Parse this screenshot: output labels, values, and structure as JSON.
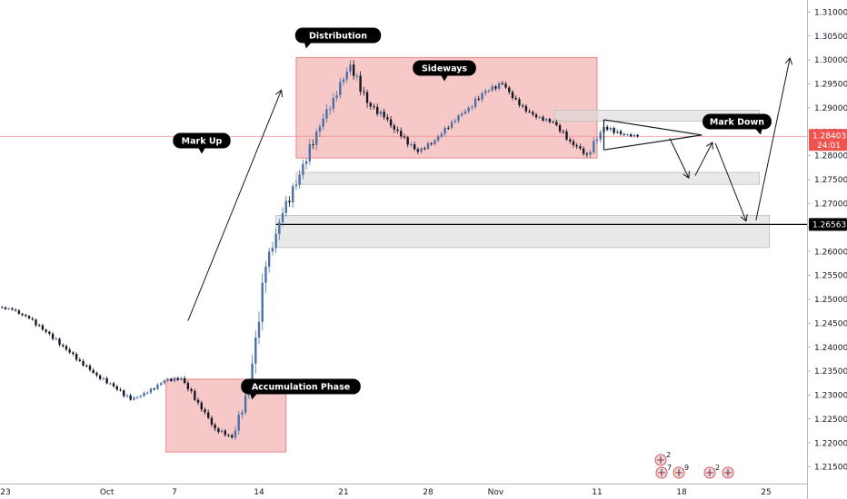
{
  "chart_data": {
    "type": "candlestick",
    "colors": {
      "up": "#4a6fa5",
      "down": "#131722",
      "zone_fill": "#ef9a9a",
      "gray_zone_fill": "#dcdcdc",
      "price_line": "#f28b8b",
      "label_fill": "#000000",
      "tag_red": "#ef5350"
    },
    "y_range": [
      1.2115,
      1.3125
    ],
    "y_ticks": [
      "1.31000",
      "1.30500",
      "1.30000",
      "1.29500",
      "1.29000",
      "1.28500",
      "1.28000",
      "1.27500",
      "1.27000",
      "1.26500",
      "1.26000",
      "1.25500",
      "1.25000",
      "1.24500",
      "1.24000",
      "1.23500",
      "1.23000",
      "1.22500",
      "1.22000",
      "1.21500"
    ],
    "x_ticks": [
      {
        "label": "23",
        "i": 0
      },
      {
        "label": "Oct",
        "i": 6
      },
      {
        "label": "7",
        "i": 10
      },
      {
        "label": "14",
        "i": 15
      },
      {
        "label": "21",
        "i": 20
      },
      {
        "label": "28",
        "i": 25
      },
      {
        "label": "Nov",
        "i": 29
      },
      {
        "label": "11",
        "i": 35
      },
      {
        "label": "18",
        "i": 40
      },
      {
        "label": "25",
        "i": 45
      }
    ],
    "price_tag": {
      "price": 1.28403,
      "label": "1.28403",
      "countdown": "24:01"
    },
    "level_tag": {
      "price": 1.26563,
      "label": "1.26563"
    },
    "annotations": {
      "accumulation": "Accumulation Phase",
      "markup": "Mark Up",
      "distribution": "Distribution",
      "sideways": "Sideways",
      "markdown": "Mark Down"
    },
    "calendar_counts": [
      "2",
      "7",
      "9",
      "2"
    ],
    "zones": [
      {
        "kind": "red",
        "from_i": 9.5,
        "to_i": 16.6,
        "low": 1.2181,
        "high": 1.2333
      },
      {
        "kind": "red",
        "from_i": 17.2,
        "to_i": 35.0,
        "low": 1.2795,
        "high": 1.3005
      },
      {
        "kind": "gray",
        "from_i": 32.5,
        "to_i": 44.6,
        "low": 1.2872,
        "high": 1.2895
      },
      {
        "kind": "gray",
        "from_i": 17.2,
        "to_i": 44.6,
        "low": 1.274,
        "high": 1.2765
      },
      {
        "kind": "gray",
        "from_i": 16.0,
        "to_i": 45.2,
        "low": 1.2608,
        "high": 1.2675
      }
    ],
    "candles": [
      [
        1.2485,
        1.2498,
        1.247,
        1.2478
      ],
      [
        1.2478,
        1.249,
        1.2452,
        1.246
      ],
      [
        1.246,
        1.2466,
        1.242,
        1.2432
      ],
      [
        1.2432,
        1.2445,
        1.2395,
        1.2402
      ],
      [
        1.2402,
        1.2415,
        1.236,
        1.2371
      ],
      [
        1.2371,
        1.2384,
        1.233,
        1.2341
      ],
      [
        1.2341,
        1.2352,
        1.2306,
        1.2318
      ],
      [
        1.2318,
        1.2331,
        1.228,
        1.229
      ],
      [
        1.229,
        1.2315,
        1.227,
        1.2305
      ],
      [
        1.2305,
        1.234,
        1.2295,
        1.233
      ],
      [
        1.233,
        1.2356,
        1.2315,
        1.2335
      ],
      [
        1.2335,
        1.234,
        1.2276,
        1.2284
      ],
      [
        1.2284,
        1.229,
        1.222,
        1.223
      ],
      [
        1.223,
        1.2246,
        1.2196,
        1.2211
      ],
      [
        1.2211,
        1.2322,
        1.2203,
        1.2312
      ],
      [
        1.2312,
        1.258,
        1.2305,
        1.2568
      ],
      [
        1.2568,
        1.27,
        1.254,
        1.268
      ],
      [
        1.268,
        1.278,
        1.264,
        1.276
      ],
      [
        1.276,
        1.288,
        1.274,
        1.285
      ],
      [
        1.285,
        1.296,
        1.282,
        1.292
      ],
      [
        1.292,
        1.301,
        1.289,
        1.299
      ],
      [
        1.299,
        1.3005,
        1.288,
        1.291
      ],
      [
        1.291,
        1.2935,
        1.285,
        1.288
      ],
      [
        1.288,
        1.291,
        1.282,
        1.284
      ],
      [
        1.284,
        1.286,
        1.279,
        1.2808
      ],
      [
        1.2808,
        1.285,
        1.28,
        1.2832
      ],
      [
        1.2832,
        1.288,
        1.2815,
        1.287
      ],
      [
        1.287,
        1.292,
        1.2855,
        1.29
      ],
      [
        1.29,
        1.2955,
        1.288,
        1.2935
      ],
      [
        1.2935,
        1.2975,
        1.2915,
        1.295
      ],
      [
        1.295,
        1.296,
        1.2895,
        1.2905
      ],
      [
        1.2905,
        1.2918,
        1.286,
        1.288
      ],
      [
        1.288,
        1.2892,
        1.285,
        1.287
      ],
      [
        1.287,
        1.288,
        1.2815,
        1.283
      ],
      [
        1.283,
        1.284,
        1.277,
        1.2802
      ],
      [
        1.2802,
        1.289,
        1.2795,
        1.286
      ],
      [
        1.286,
        1.2875,
        1.282,
        1.2845
      ],
      [
        1.2845,
        1.2862,
        1.2828,
        1.284
      ]
    ]
  }
}
